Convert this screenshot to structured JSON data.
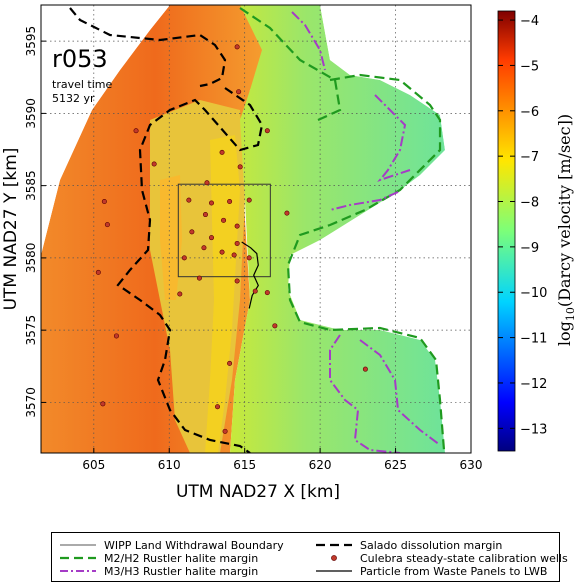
{
  "figure": {
    "run_label": "r053",
    "travel_time_label": "travel time",
    "travel_time_value": "5132 yr"
  },
  "chart_data": {
    "type": "heatmap",
    "title": "",
    "xlabel": "UTM NAD27 X [km]",
    "ylabel": "UTM NAD27 Y [km]",
    "xlim": [
      601.5,
      630
    ],
    "ylim": [
      3566.5,
      3597.5
    ],
    "x_ticks": [
      "605",
      "610",
      "615",
      "620",
      "625",
      "630"
    ],
    "y_ticks": [
      "3570",
      "3575",
      "3580",
      "3585",
      "3590",
      "3595"
    ],
    "grid": true,
    "colorbar": {
      "label": "log10(Darcy velocity [m/sec])",
      "label_main": "log",
      "label_sub": "10",
      "label_rest": "(Darcy velocity [m/sec])",
      "range": [
        -13.5,
        -3.8
      ],
      "ticks": [
        "−4",
        "−5",
        "−6",
        "−7",
        "−8",
        "−9",
        "−10",
        "−11",
        "−12",
        "−13"
      ],
      "colormap": "jet"
    },
    "wipp_boundary": {
      "x": [
        610.6,
        616.7
      ],
      "y": [
        3578.7,
        3585.1
      ]
    },
    "calibration_wells": [
      {
        "x": 614.5,
        "y": 3594.6
      },
      {
        "x": 614.6,
        "y": 3591.5
      },
      {
        "x": 616.5,
        "y": 3588.8
      },
      {
        "x": 607.8,
        "y": 3588.8
      },
      {
        "x": 609.0,
        "y": 3586.5
      },
      {
        "x": 613.5,
        "y": 3587.3
      },
      {
        "x": 614.7,
        "y": 3586.3
      },
      {
        "x": 612.5,
        "y": 3585.2
      },
      {
        "x": 611.3,
        "y": 3584.0
      },
      {
        "x": 612.8,
        "y": 3583.8
      },
      {
        "x": 614.0,
        "y": 3583.9
      },
      {
        "x": 615.3,
        "y": 3584.0
      },
      {
        "x": 612.4,
        "y": 3583.0
      },
      {
        "x": 613.6,
        "y": 3582.6
      },
      {
        "x": 614.5,
        "y": 3582.2
      },
      {
        "x": 611.5,
        "y": 3581.8
      },
      {
        "x": 612.8,
        "y": 3581.4
      },
      {
        "x": 614.5,
        "y": 3581.0
      },
      {
        "x": 612.3,
        "y": 3580.7
      },
      {
        "x": 613.5,
        "y": 3580.4
      },
      {
        "x": 614.3,
        "y": 3580.2
      },
      {
        "x": 615.3,
        "y": 3580.0
      },
      {
        "x": 611.0,
        "y": 3580.0
      },
      {
        "x": 612.0,
        "y": 3578.6
      },
      {
        "x": 614.5,
        "y": 3578.4
      },
      {
        "x": 616.5,
        "y": 3577.6
      },
      {
        "x": 615.7,
        "y": 3577.7
      },
      {
        "x": 610.7,
        "y": 3577.5
      },
      {
        "x": 605.3,
        "y": 3579.0
      },
      {
        "x": 605.9,
        "y": 3582.3
      },
      {
        "x": 605.7,
        "y": 3583.9
      },
      {
        "x": 606.5,
        "y": 3574.6
      },
      {
        "x": 617.0,
        "y": 3575.3
      },
      {
        "x": 617.8,
        "y": 3583.1
      },
      {
        "x": 614.0,
        "y": 3572.7
      },
      {
        "x": 613.2,
        "y": 3569.7
      },
      {
        "x": 613.7,
        "y": 3568.0
      },
      {
        "x": 605.6,
        "y": 3569.9
      },
      {
        "x": 623.0,
        "y": 3572.3
      }
    ],
    "particle_path": [
      {
        "x": 614.8,
        "y": 3581.1
      },
      {
        "x": 615.4,
        "y": 3580.7
      },
      {
        "x": 615.8,
        "y": 3580.3
      },
      {
        "x": 615.9,
        "y": 3579.5
      },
      {
        "x": 615.6,
        "y": 3578.8
      },
      {
        "x": 615.9,
        "y": 3578.1
      },
      {
        "x": 615.5,
        "y": 3577.4
      },
      {
        "x": 615.3,
        "y": 3576.5
      }
    ]
  },
  "legend": [
    {
      "label": "WIPP Land Withdrawal Boundary",
      "style": "thin-solid",
      "color": "#555555"
    },
    {
      "label": "Salado dissolution margin",
      "style": "dashed",
      "color": "#000000"
    },
    {
      "label": "M2/H2 Rustler halite margin",
      "style": "dashed",
      "color": "#1f9a1f"
    },
    {
      "label": "Culebra steady-state calibration wells",
      "style": "dot",
      "color": "#c0392b"
    },
    {
      "label": "M3/H3 Rustler halite margin",
      "style": "dash-dot",
      "color": "#a53cc6"
    },
    {
      "label": "Particle from Waste Panels to LWB",
      "style": "solid",
      "color": "#000000"
    }
  ]
}
